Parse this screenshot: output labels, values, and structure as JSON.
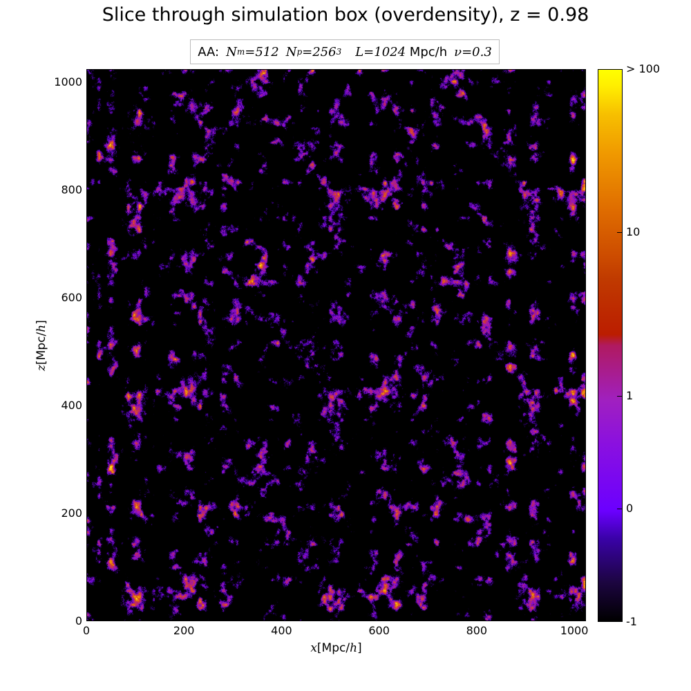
{
  "chart_data": {
    "type": "heatmap",
    "title": "Slice through simulation box (overdensity), z = 0.98",
    "annotation": {
      "prefix": "AA:",
      "parts": [
        {
          "sym": "N",
          "sub": "m",
          "eq": "=512"
        },
        {
          "sym": "N",
          "sub": "p",
          "eq": "=256",
          "sup": "3"
        },
        {
          "sym": "L",
          "eq": "=1024",
          "unit": "Mpc/h"
        },
        {
          "sym": "ν",
          "eq": "=0.3"
        }
      ]
    },
    "xlabel": {
      "var": "x",
      "unit": "Mpc/",
      "unit_var": "h"
    },
    "ylabel": {
      "var": "z",
      "unit": "Mpc/",
      "unit_var": "h"
    },
    "xlim": [
      0,
      1024
    ],
    "ylim": [
      0,
      1024
    ],
    "xticks": [
      0,
      200,
      400,
      600,
      800,
      1000
    ],
    "yticks": [
      0,
      200,
      400,
      600,
      800,
      1000
    ],
    "colorbar": {
      "scale": "nonlinear",
      "range": [
        -1,
        100
      ],
      "ticks": [
        {
          "value": -1,
          "label": "-1",
          "frac": 0.0
        },
        {
          "value": 0,
          "label": "0",
          "frac": 0.205
        },
        {
          "value": 1,
          "label": "1",
          "frac": 0.409
        },
        {
          "value": 10,
          "label": "10",
          "frac": 0.705
        },
        {
          "value": 100,
          "label": "> 100",
          "frac": 1.0
        }
      ]
    },
    "colors": {
      "void": "#000000",
      "low": "#6b00ff",
      "mid": "#bb1d00",
      "high": "#ffff00"
    }
  }
}
